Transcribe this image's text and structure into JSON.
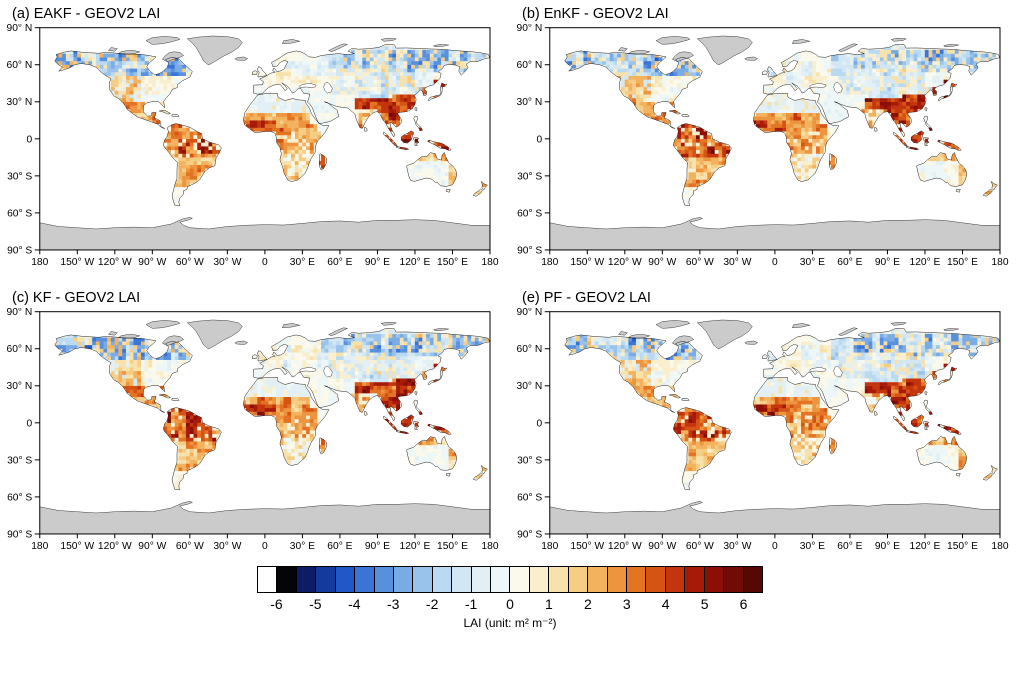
{
  "figure": {
    "panels": [
      {
        "id": "a",
        "title": "(a) EAKF - GEOV2 LAI"
      },
      {
        "id": "b",
        "title": "(b) EnKF - GEOV2 LAI"
      },
      {
        "id": "c",
        "title": "(c) KF - GEOV2 LAI"
      },
      {
        "id": "e",
        "title": "(e) PF - GEOV2 LAI"
      }
    ],
    "y_ticks": [
      {
        "value": 90,
        "label": "90° N"
      },
      {
        "value": 60,
        "label": "60° N"
      },
      {
        "value": 30,
        "label": "30° N"
      },
      {
        "value": 0,
        "label": "0"
      },
      {
        "value": -30,
        "label": "30° S"
      },
      {
        "value": -60,
        "label": "60° S"
      },
      {
        "value": -90,
        "label": "90° S"
      }
    ],
    "x_ticks": [
      {
        "value": -180,
        "label": "180"
      },
      {
        "value": -150,
        "label": "150° W"
      },
      {
        "value": -120,
        "label": "120° W"
      },
      {
        "value": -90,
        "label": "90° W"
      },
      {
        "value": -60,
        "label": "60° W"
      },
      {
        "value": -30,
        "label": "30° W"
      },
      {
        "value": 0,
        "label": "0"
      },
      {
        "value": 30,
        "label": "30° E"
      },
      {
        "value": 60,
        "label": "60° E"
      },
      {
        "value": 90,
        "label": "90° E"
      },
      {
        "value": 120,
        "label": "120° E"
      },
      {
        "value": 150,
        "label": "150° E"
      },
      {
        "value": 180,
        "label": "180"
      }
    ],
    "colorbar": {
      "label": "LAI (unit: m² m⁻²)",
      "tick_labels": [
        "-6",
        "-5",
        "-4",
        "-3",
        "-2",
        "-1",
        "0",
        "1",
        "2",
        "3",
        "4",
        "5",
        "6"
      ],
      "min": -6,
      "max": 6,
      "step": 0.5,
      "colors": [
        "#ffffff",
        "#050508",
        "#0d1c66",
        "#143a9e",
        "#2257c8",
        "#3a74d6",
        "#5890de",
        "#79abe4",
        "#9ac3ec",
        "#badaf1",
        "#d2e7f3",
        "#e2f0f5",
        "#eef7f7",
        "#fbf9eb",
        "#f9efcf",
        "#f8e2ac",
        "#f6cd85",
        "#f2b25e",
        "#ec953e",
        "#e37424",
        "#d55413",
        "#c3350d",
        "#a81a08",
        "#8c0f07",
        "#700b06",
        "#560805"
      ]
    },
    "no_data_color": "#cbcbcb",
    "ocean_color": "#ffffff"
  },
  "chart_data": {
    "type": "heatmap",
    "subtype": "global map panels (equirectangular)",
    "variable": "LAI difference (method minus GEOV2)",
    "units": "m² m⁻²",
    "value_range": [
      -6,
      6
    ],
    "contour_interval": 0.5,
    "lon_range": [
      -180,
      180
    ],
    "lat_range": [
      -90,
      90
    ],
    "panels": [
      {
        "label": "(a)",
        "method": "EAKF",
        "title": "(a) EAKF - GEOV2 LAI"
      },
      {
        "label": "(b)",
        "method": "EnKF",
        "title": "(b) EnKF - GEOV2 LAI"
      },
      {
        "label": "(c)",
        "method": "KF",
        "title": "(c) KF - GEOV2 LAI"
      },
      {
        "label": "(e)",
        "method": "PF",
        "title": "(e) PF - GEOV2 LAI"
      }
    ],
    "regional_pattern": [
      {
        "region": "Boreal North America (Canada, Alaska)",
        "typical_difference": -2
      },
      {
        "region": "Siberia / boreal Eurasia",
        "typical_difference": -2
      },
      {
        "region": "Europe and eastern North America",
        "typical_difference": 0
      },
      {
        "region": "Western North America and Mexico",
        "typical_difference": 2
      },
      {
        "region": "Amazon and central South America",
        "typical_difference": 4.5
      },
      {
        "region": "West and Central Africa",
        "typical_difference": 3
      },
      {
        "region": "Sahara, Arabia, Central Asia",
        "typical_difference": -0.5
      },
      {
        "region": "Himalaya, South and Southeast Asia, Indonesia",
        "typical_difference": 5
      },
      {
        "region": "East China, Korea, Japan",
        "typical_difference": 4
      },
      {
        "region": "Madagascar",
        "typical_difference": 3
      },
      {
        "region": "Northern and eastern Australia",
        "typical_difference": 2
      },
      {
        "region": "Greenland and Antarctica",
        "typical_difference": null
      }
    ]
  }
}
